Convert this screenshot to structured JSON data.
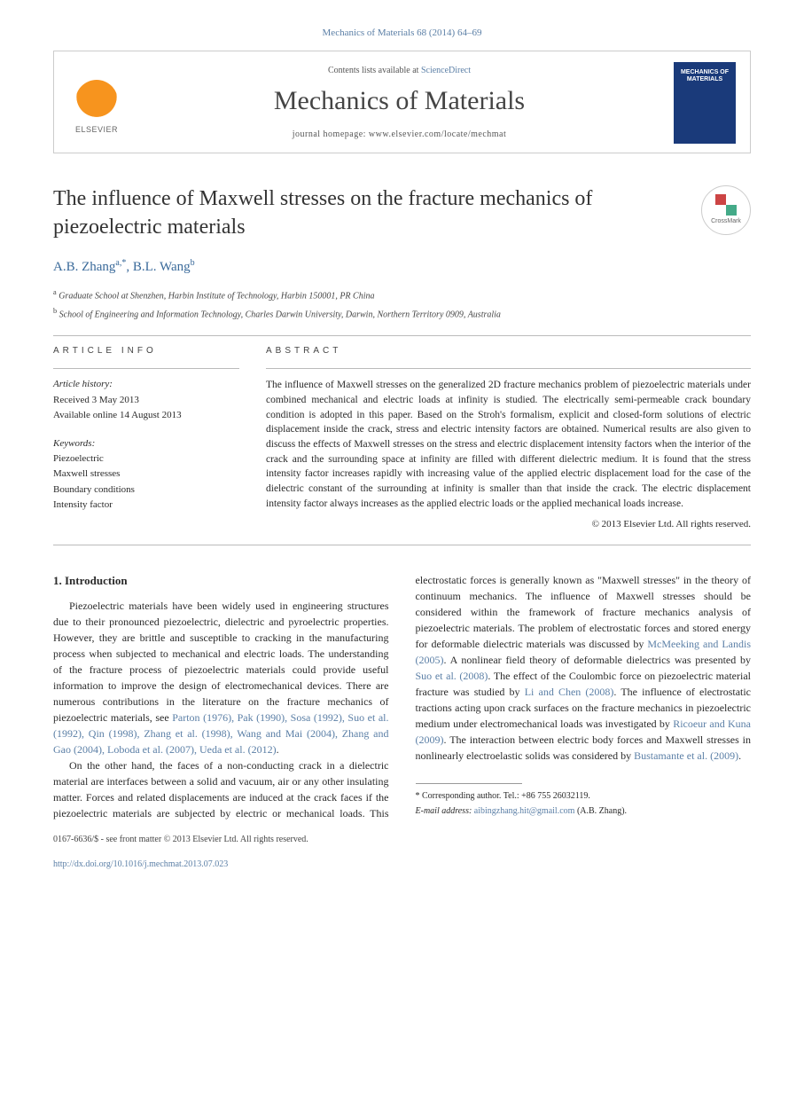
{
  "journal_ref": "Mechanics of Materials 68 (2014) 64–69",
  "masthead": {
    "contents_prefix": "Contents lists available at ",
    "contents_link": "ScienceDirect",
    "journal_name": "Mechanics of Materials",
    "homepage_prefix": "journal homepage: ",
    "homepage_url": "www.elsevier.com/locate/mechmat",
    "publisher_label": "ELSEVIER",
    "cover_text": "MECHANICS OF MATERIALS"
  },
  "title": "The influence of Maxwell stresses on the fracture mechanics of piezoelectric materials",
  "crossmark_label": "CrossMark",
  "authors_html": "A.B. Zhang",
  "author1": "A.B. Zhang",
  "author1_sup": "a,",
  "author1_star": "*",
  "author_sep": ", ",
  "author2": "B.L. Wang",
  "author2_sup": "b",
  "affiliations": [
    {
      "sup": "a",
      "text": "Graduate School at Shenzhen, Harbin Institute of Technology, Harbin 150001, PR China"
    },
    {
      "sup": "b",
      "text": "School of Engineering and Information Technology, Charles Darwin University, Darwin, Northern Territory 0909, Australia"
    }
  ],
  "article_info": {
    "heading": "ARTICLE INFO",
    "history_label": "Article history:",
    "received": "Received 3 May 2013",
    "online": "Available online 14 August 2013",
    "keywords_label": "Keywords:",
    "keywords": [
      "Piezoelectric",
      "Maxwell stresses",
      "Boundary conditions",
      "Intensity factor"
    ]
  },
  "abstract": {
    "heading": "ABSTRACT",
    "text": "The influence of Maxwell stresses on the generalized 2D fracture mechanics problem of piezoelectric materials under combined mechanical and electric loads at infinity is studied. The electrically semi-permeable crack boundary condition is adopted in this paper. Based on the Stroh's formalism, explicit and closed-form solutions of electric displacement inside the crack, stress and electric intensity factors are obtained. Numerical results are also given to discuss the effects of Maxwell stresses on the stress and electric displacement intensity factors when the interior of the crack and the surrounding space at infinity are filled with different dielectric medium. It is found that the stress intensity factor increases rapidly with increasing value of the applied electric displacement load for the case of the dielectric constant of the surrounding at infinity is smaller than that inside the crack. The electric displacement intensity factor always increases as the applied electric loads or the applied mechanical loads increase.",
    "copyright": "© 2013 Elsevier Ltd. All rights reserved."
  },
  "body": {
    "section_heading": "1. Introduction",
    "p1a": "Piezoelectric materials have been widely used in engineering structures due to their pronounced piezoelectric, dielectric and pyroelectric properties. However, they are brittle and susceptible to cracking in the manufacturing process when subjected to mechanical and electric loads. The understanding of the fracture process of piezoelectric materials could provide useful information to improve the design of electromechanical devices. There are numerous contributions in the literature on the fracture mechanics of piezoelectric materials, see ",
    "p1_refs": "Parton (1976), Pak (1990), Sosa (1992), Suo et al. (1992), Qin (1998), Zhang et al. (1998), Wang and Mai (2004), Zhang and Gao (2004), Loboda et al. (2007), Ueda et al. (2012)",
    "p1b": ".",
    "p2a": "On the other hand, the faces of a non-conducting crack in a dielectric material are interfaces between a solid and vacuum, air or any other insulating matter. Forces and related displacements are induced at the crack faces if the piezoelectric materials are subjected by electric or mechanical loads. This electrostatic forces is generally known as \"Maxwell stresses\" in the theory of continuum mechanics. The influence of Maxwell stresses should be considered within the framework of fracture mechanics analysis of piezoelectric materials. The problem of electrostatic forces and stored energy for deformable dielectric materials was discussed by ",
    "p2_ref1": "McMeeking and Landis (2005)",
    "p2b": ". A nonlinear field theory of deformable dielectrics was presented by ",
    "p2_ref2": "Suo et al. (2008)",
    "p2c": ". The effect of the Coulombic force on piezoelectric material fracture was studied by ",
    "p2_ref3": "Li and Chen (2008)",
    "p2d": ". The influence of electrostatic tractions acting upon crack surfaces on the fracture mechanics in piezoelectric medium under electromechanical loads was investigated by ",
    "p2_ref4": "Ricoeur and Kuna (2009)",
    "p2e": ". The interaction between electric body forces and Maxwell stresses in nonlinearly electroelastic solids was considered by ",
    "p2_ref5": "Bustamante et al. (2009)",
    "p2f": "."
  },
  "footer": {
    "corr_marker": "* ",
    "corr_text": "Corresponding author. Tel.: +86 755 26032119.",
    "email_label": "E-mail address: ",
    "email": "aibingzhang.hit@gmail.com",
    "email_who": " (A.B. Zhang).",
    "issn_line": "0167-6636/$ - see front matter © 2013 Elsevier Ltd. All rights reserved.",
    "doi": "http://dx.doi.org/10.1016/j.mechmat.2013.07.023"
  },
  "colors": {
    "link": "#5b7fa6",
    "text": "#2a2a2a",
    "cover_bg": "#1a3a7a",
    "elsevier_orange": "#f7941e"
  }
}
